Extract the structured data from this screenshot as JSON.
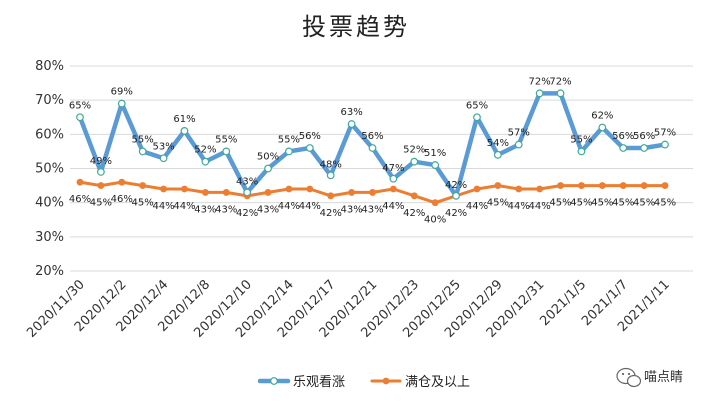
{
  "chart_data": {
    "type": "line",
    "title": "投票趋势",
    "xlabel": "",
    "ylabel": "",
    "ylim": [
      20,
      80
    ],
    "yticks": [
      "20%",
      "30%",
      "40%",
      "50%",
      "60%",
      "70%",
      "80%"
    ],
    "grid": true,
    "legend": "bottom",
    "categories": [
      "2020/11/30",
      "2020/12/1",
      "2020/12/2",
      "2020/12/3",
      "2020/12/4",
      "2020/12/7",
      "2020/12/8",
      "2020/12/9",
      "2020/12/10",
      "2020/12/11",
      "2020/12/14",
      "2020/12/15",
      "2020/12/17",
      "2020/12/18",
      "2020/12/21",
      "2020/12/22",
      "2020/12/23",
      "2020/12/24",
      "2020/12/25",
      "2020/12/28",
      "2020/12/29",
      "2020/12/30",
      "2020/12/31",
      "2021/1/4",
      "2021/1/5",
      "2021/1/6",
      "2021/1/7",
      "2021/1/8",
      "2021/1/11"
    ],
    "xtick_labels": [
      "2020/11/30",
      "2020/12/2",
      "2020/12/4",
      "2020/12/8",
      "2020/12/10",
      "2020/12/14",
      "2020/12/17",
      "2020/12/21",
      "2020/12/23",
      "2020/12/25",
      "2020/12/29",
      "2020/12/31",
      "2021/1/5",
      "2021/1/7",
      "2021/1/11"
    ],
    "series": [
      {
        "name": "乐观看涨",
        "color": "#5b9bd5",
        "values": [
          65,
          49,
          69,
          55,
          53,
          61,
          52,
          55,
          43,
          50,
          55,
          56,
          48,
          63,
          56,
          47,
          52,
          51,
          42,
          65,
          54,
          57,
          72,
          72,
          55,
          62,
          56,
          56,
          57
        ]
      },
      {
        "name": "满仓及以上",
        "color": "#ed7d31",
        "values": [
          46,
          45,
          46,
          45,
          44,
          44,
          43,
          43,
          42,
          43,
          44,
          44,
          42,
          43,
          43,
          44,
          42,
          40,
          42,
          44,
          45,
          44,
          44,
          45,
          45,
          45,
          45,
          45,
          45
        ]
      }
    ]
  },
  "watermark": {
    "icon": "wechat-icon",
    "text": "喵点睛"
  }
}
